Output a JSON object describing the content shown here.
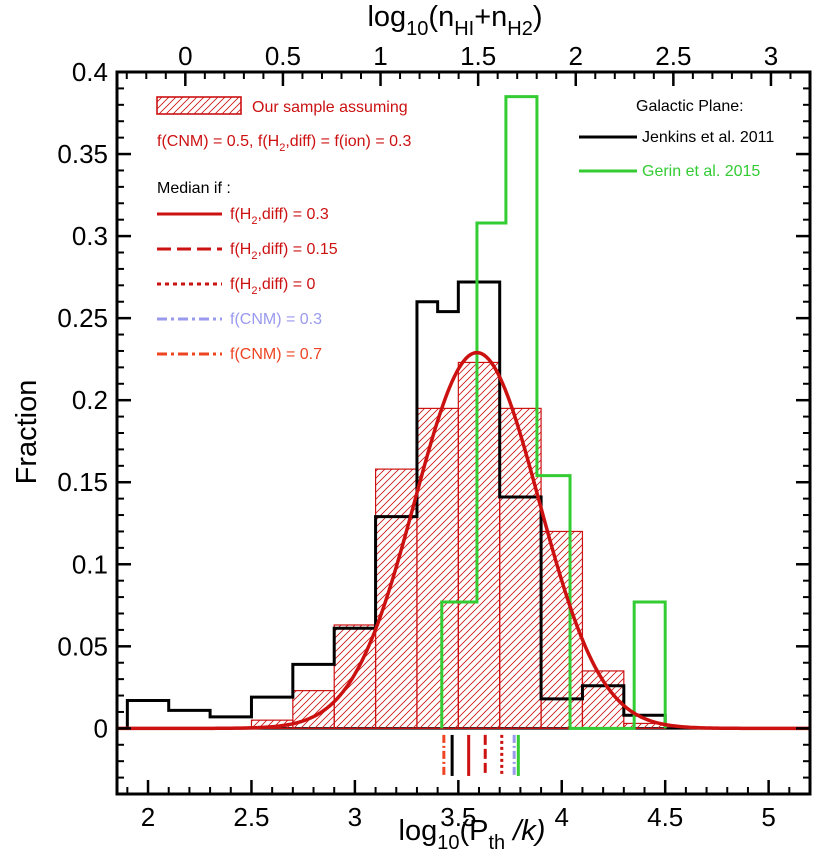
{
  "chart_data": {
    "type": "histogram",
    "xlabel": {
      "pre": "log",
      "sub1": "10",
      "mid": "(P",
      "sub2": "th",
      "post": " /k)"
    },
    "ylabel": "Fraction",
    "top_xlabel": {
      "pre": "log",
      "sub1": "10",
      "mid": "(n",
      "sub2": "HI",
      "plus": "+n",
      "sub3": "H2",
      "post": ")"
    },
    "xlim": [
      1.85,
      5.2
    ],
    "ylim": [
      -0.04,
      0.4
    ],
    "top_xlim": [
      -0.35,
      3.2
    ],
    "x_ticks": [
      2,
      2.5,
      3,
      3.5,
      4,
      4.5,
      5
    ],
    "x_tick_labels": [
      "2",
      "2.5",
      "3",
      "3.5",
      "4",
      "4.5",
      "5"
    ],
    "y_ticks": [
      0,
      0.05,
      0.1,
      0.15,
      0.2,
      0.25,
      0.3,
      0.35,
      0.4
    ],
    "y_tick_labels": [
      "0",
      "0.05",
      "0.1",
      "0.15",
      "0.2",
      "0.25",
      "0.3",
      "0.35",
      "0.4"
    ],
    "top_x_ticks": [
      0,
      0.5,
      1,
      1.5,
      2,
      2.5,
      3
    ],
    "top_x_tick_labels": [
      "0",
      "0.5",
      "1",
      "1.5",
      "2",
      "2.5",
      "3"
    ],
    "series": [
      {
        "name": "Our sample",
        "style": "hatched-bars",
        "color": "#cc1111",
        "edges": [
          2.5,
          2.7,
          2.9,
          3.1,
          3.3,
          3.5,
          3.7,
          3.9,
          4.1,
          4.3,
          4.5
        ],
        "values": [
          0.005,
          0.023,
          0.063,
          0.158,
          0.195,
          0.223,
          0.195,
          0.12,
          0.035,
          0.003
        ]
      },
      {
        "name": "Jenkins et al. 2011",
        "style": "step",
        "color": "#000000",
        "edges": [
          1.9,
          2.1,
          2.3,
          2.5,
          2.7,
          2.9,
          3.1,
          3.3,
          3.4,
          3.5,
          3.7,
          3.9,
          4.1,
          4.3,
          4.5
        ],
        "values": [
          0.017,
          0.011,
          0.007,
          0.019,
          0.039,
          0.061,
          0.129,
          0.26,
          0.254,
          0.272,
          0.141,
          0.018,
          0.026,
          0.008
        ]
      },
      {
        "name": "Gerin et al. 2015",
        "style": "step",
        "color": "#33cc33",
        "edges": [
          3.42,
          3.59,
          3.73,
          3.88,
          4.04,
          4.35,
          4.5
        ],
        "values": [
          0.077,
          0.308,
          0.385,
          0.154,
          0.0,
          0.077
        ]
      },
      {
        "name": "Gaussian fit",
        "style": "curve",
        "color": "#cc1111",
        "mu": 3.59,
        "sigma": 0.3,
        "peak": 0.229
      }
    ],
    "median_markers": [
      {
        "name": "f(CNM) = 0.7",
        "x": 3.43,
        "color": "#ee4422",
        "dash": "8 3 2 3"
      },
      {
        "name": "Jenkins",
        "x": 3.47,
        "color": "#000000",
        "dash": ""
      },
      {
        "name": "f(H2,diff) = 0.3",
        "x": 3.55,
        "color": "#cc1111",
        "dash": ""
      },
      {
        "name": "f(H2,diff) = 0.15",
        "x": 3.63,
        "color": "#cc1111",
        "dash": "10 4"
      },
      {
        "name": "f(H2,diff) = 0",
        "x": 3.71,
        "color": "#cc1111",
        "dash": "3 3"
      },
      {
        "name": "f(CNM) = 0.3",
        "x": 3.77,
        "color": "#9999ee",
        "dash": "8 3 2 3"
      },
      {
        "name": "Gerin",
        "x": 3.79,
        "color": "#33cc33",
        "dash": ""
      }
    ],
    "legend": {
      "sample_title": "Our sample assuming",
      "sample_line2": {
        "pre": "f(CNM) = 0.5, f(H",
        "sub": "2",
        "post": ",diff) = f(ion) = 0.3"
      },
      "median_title": "Median if :",
      "median_items": [
        {
          "pre": "f(H",
          "sub": "2",
          "post": ",diff) = 0.3",
          "color": "#cc1111",
          "dash": ""
        },
        {
          "pre": "f(H",
          "sub": "2",
          "post": ",diff) = 0.15",
          "color": "#cc1111",
          "dash": "14 6"
        },
        {
          "pre": "f(H",
          "sub": "2",
          "post": ",diff) = 0",
          "color": "#cc1111",
          "dash": "4 4"
        },
        {
          "pre": "f(CNM) = 0.3",
          "sub": "",
          "post": "",
          "color": "#9999ee",
          "dash": "10 4 3 4"
        },
        {
          "pre": "f(CNM) = 0.7",
          "sub": "",
          "post": "",
          "color": "#ee4422",
          "dash": "10 4 3 4"
        }
      ],
      "galactic_title": "Galactic Plane:",
      "galactic_items": [
        {
          "label": "Jenkins et al. 2011",
          "color": "#000000"
        },
        {
          "label": "Gerin et al. 2015",
          "color": "#33cc33"
        }
      ]
    }
  }
}
